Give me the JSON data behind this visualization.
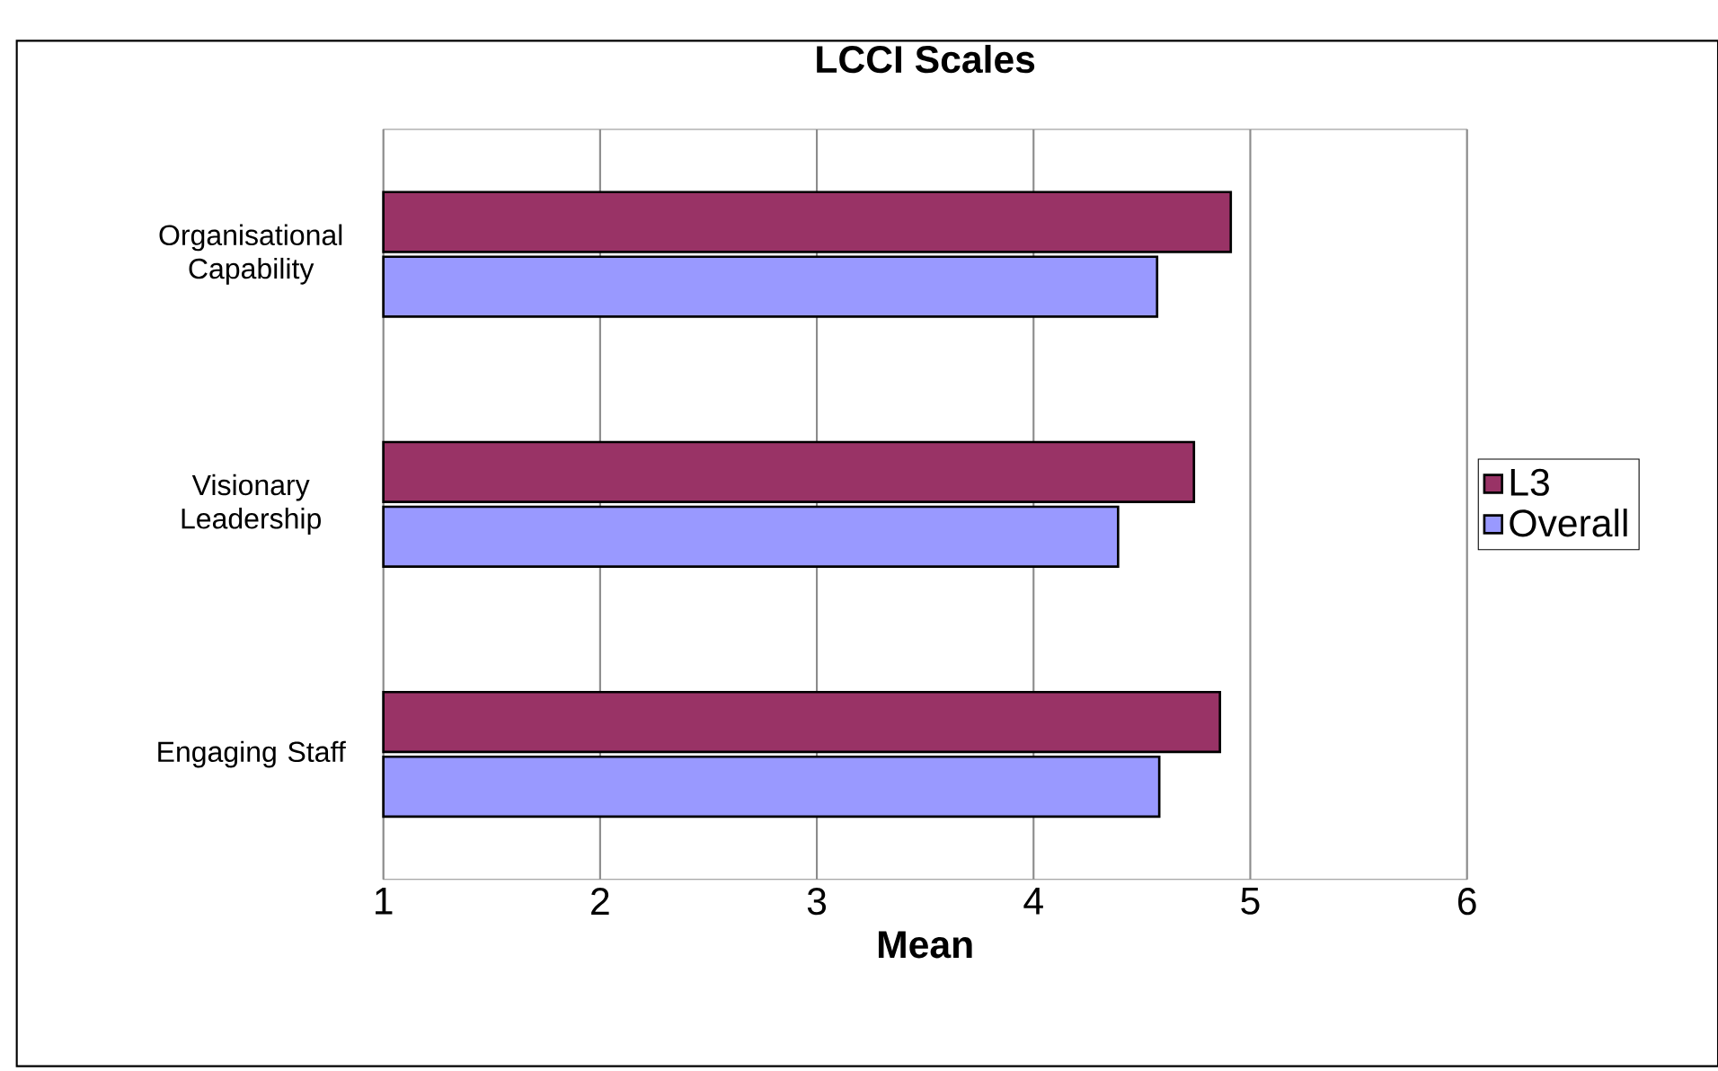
{
  "chart_data": {
    "type": "bar",
    "orientation": "horizontal",
    "title": "LCCI Scales",
    "xlabel": "Mean",
    "categories": [
      "Organisational Capability",
      "Visionary Leadership",
      "Engaging Staff"
    ],
    "series": [
      {
        "name": "L3",
        "color": "#993366",
        "values": [
          4.91,
          4.74,
          4.86
        ]
      },
      {
        "name": "Overall",
        "color": "#9999ff",
        "values": [
          4.57,
          4.39,
          4.58
        ]
      }
    ],
    "xlim": [
      1,
      6
    ],
    "xticks": [
      1,
      2,
      3,
      4,
      5,
      6
    ],
    "grid": "x",
    "legend": "right"
  }
}
